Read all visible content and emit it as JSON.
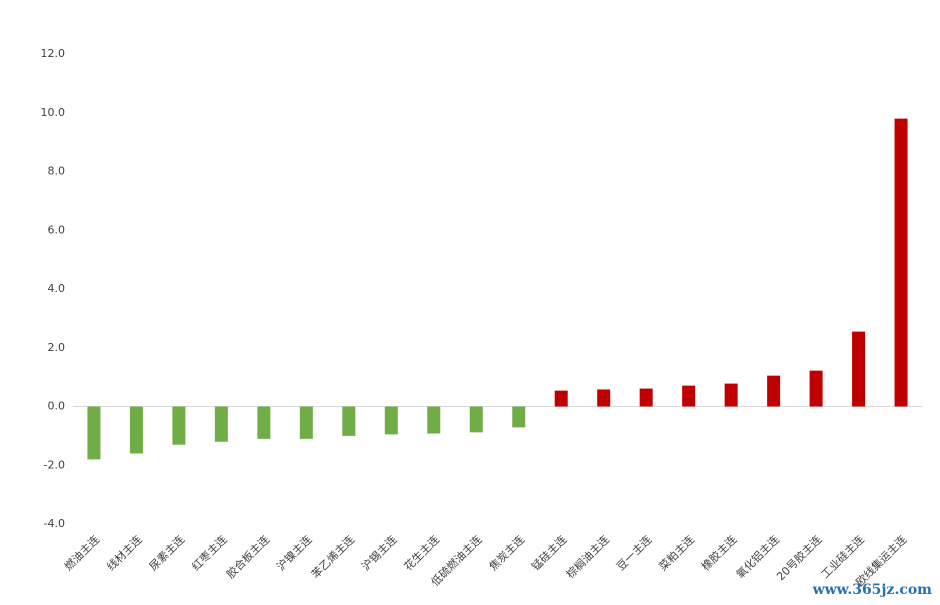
{
  "chart_data": {
    "type": "bar",
    "categories": [
      "燃油主连",
      "线材主连",
      "尿素主连",
      "红枣主连",
      "胶合板主连",
      "沪镍主连",
      "苯乙烯主连",
      "沪锡主连",
      "花生主连",
      "低硫燃油主连",
      "焦炭主连",
      "锰硅主连",
      "棕榈油主连",
      "豆一主连",
      "菜粕主连",
      "橡胶主连",
      "氧化铝主连",
      "20号胶主连",
      "工业硅主连",
      "欧线集运主连"
    ],
    "values": [
      -1.8,
      -1.6,
      -1.3,
      -1.2,
      -1.1,
      -1.1,
      -1.0,
      -0.95,
      -0.92,
      -0.88,
      -0.71,
      0.54,
      0.58,
      0.61,
      0.71,
      0.78,
      1.05,
      1.22,
      2.55,
      9.8
    ],
    "positive_color": "#c00000",
    "negative_color": "#70ad47",
    "ylim": [
      -4,
      12
    ],
    "yticks": [
      {
        "value": -4,
        "label": "-4.0"
      },
      {
        "value": -2,
        "label": "-2.0"
      },
      {
        "value": 0,
        "label": "0.0"
      },
      {
        "value": 2,
        "label": "2.0"
      },
      {
        "value": 4,
        "label": "4.0"
      },
      {
        "value": 6,
        "label": "6.0"
      },
      {
        "value": 8,
        "label": "8.0"
      },
      {
        "value": 10,
        "label": "10.0"
      },
      {
        "value": 12,
        "label": "12.0"
      }
    ],
    "grid": false,
    "watermark": "www.365jz.com"
  }
}
